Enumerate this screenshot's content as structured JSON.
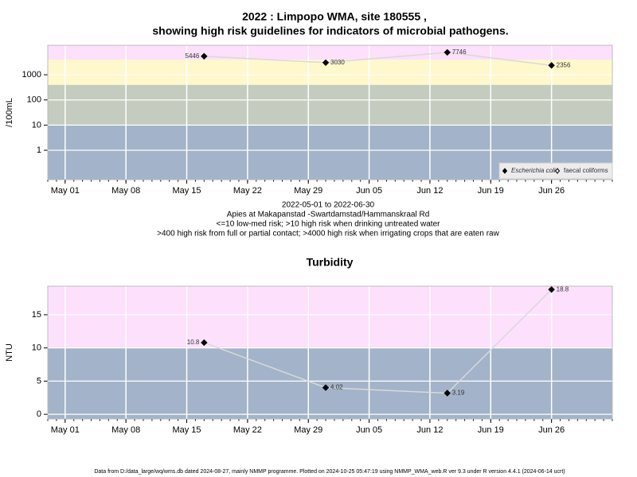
{
  "title": [
    "2022 : Limpopo WMA, site 180555 ,",
    "showing high risk guidelines for indicators of microbial pathogens."
  ],
  "notes": [
    "2022-05-01 to 2022-06-30",
    "Apies at Makapanstad -Swartdamstad/Hammanskraal Rd",
    "<=10 low-med risk; >10 high risk when drinking untreated water",
    ">400 high risk from full or partial contact; >4000 high risk when irrigating crops that are eaten raw"
  ],
  "footer": "Data from D:/data_large/wq/wms.db dated 2024-08-27, mainly NMMP programme. Plotted on 2024-10-25 05:47:19 using NMMP_WMA_web.R ver 9.3 under R version 4.4.1 (2024-06-14 ucrt)",
  "chart_data": [
    {
      "type": "line",
      "ylabel": "/100mL",
      "log_scale": true,
      "grid": true,
      "legend": "bottom-right",
      "x": [
        "2022-05-17",
        "2022-05-31",
        "2022-06-14",
        "2022-06-26"
      ],
      "series": [
        {
          "name": "Escherichia coli",
          "color": "#000000",
          "line_color": "#d9d9d9",
          "marker": "filled",
          "values": [
            5446,
            3030,
            7746,
            2356
          ]
        },
        {
          "name": "faecal coliforms",
          "color": "#000000",
          "marker": "open",
          "values": [
            null,
            null,
            null,
            null
          ]
        }
      ],
      "xlim": [
        "2022-04-29",
        "2022-07-03"
      ],
      "xticks": [
        {
          "value": "2022-05-01",
          "label": "May 01"
        },
        {
          "value": "2022-05-08",
          "label": "May 08"
        },
        {
          "value": "2022-05-15",
          "label": "May 15"
        },
        {
          "value": "2022-05-22",
          "label": "May 22"
        },
        {
          "value": "2022-05-29",
          "label": "May 29"
        },
        {
          "value": "2022-06-05",
          "label": "Jun 05"
        },
        {
          "value": "2022-06-12",
          "label": "Jun 12"
        },
        {
          "value": "2022-06-19",
          "label": "Jun 19"
        },
        {
          "value": "2022-06-26",
          "label": "Jun 26"
        }
      ],
      "ylim": [
        0.068,
        14800
      ],
      "yticks": [
        1,
        10,
        100,
        {
          "value": 1000,
          "label": "1000"
        }
      ],
      "bands": {
        "thresholds": [
          10,
          400,
          4000
        ],
        "colors": [
          "#a3b3c9",
          "#c4ccbf",
          "#fff8cc",
          "#fce0fc"
        ]
      }
    },
    {
      "type": "line",
      "title": "Turbidity",
      "ylabel": "NTU",
      "log_scale": false,
      "grid": true,
      "x": [
        "2022-05-17",
        "2022-05-31",
        "2022-06-14",
        "2022-06-26"
      ],
      "series": [
        {
          "name": "Turbidity",
          "color": "#000000",
          "line_color": "#d9d9d9",
          "marker": "filled",
          "values": [
            10.8,
            4.02,
            3.19,
            18.8
          ]
        }
      ],
      "xlim": [
        "2022-04-29",
        "2022-07-03"
      ],
      "xticks": [
        {
          "value": "2022-05-01",
          "label": "May 01"
        },
        {
          "value": "2022-05-08",
          "label": "May 08"
        },
        {
          "value": "2022-05-15",
          "label": "May 15"
        },
        {
          "value": "2022-05-22",
          "label": "May 22"
        },
        {
          "value": "2022-05-29",
          "label": "May 29"
        },
        {
          "value": "2022-06-05",
          "label": "Jun 05"
        },
        {
          "value": "2022-06-12",
          "label": "Jun 12"
        },
        {
          "value": "2022-06-19",
          "label": "Jun 19"
        },
        {
          "value": "2022-06-26",
          "label": "Jun 26"
        }
      ],
      "ylim": [
        -0.7,
        19.3
      ],
      "yticks": [
        0,
        5,
        10,
        15
      ],
      "bands": {
        "thresholds": [
          10
        ],
        "colors": [
          "#a3b3c9",
          "#fce0fc"
        ]
      }
    }
  ]
}
